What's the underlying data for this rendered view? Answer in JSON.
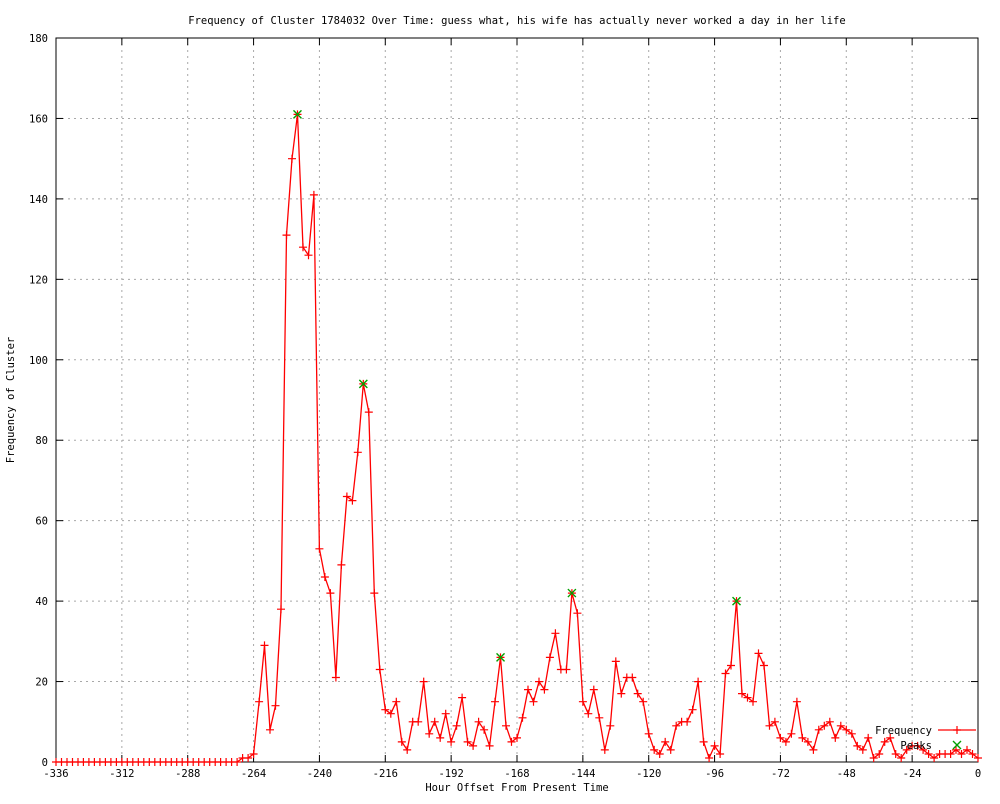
{
  "chart_data": {
    "type": "line",
    "title": "Frequency of Cluster 1784032 Over Time: guess what, his wife has actually never worked a day in her life",
    "xlabel": "Hour Offset From Present Time",
    "ylabel": "Frequency of Cluster",
    "xlim": [
      -336,
      0
    ],
    "ylim": [
      0,
      180
    ],
    "xticks": [
      -336,
      -312,
      -288,
      -264,
      -240,
      -216,
      -192,
      -168,
      -144,
      -120,
      -96,
      -72,
      -48,
      -24,
      0
    ],
    "yticks": [
      0,
      20,
      40,
      60,
      80,
      100,
      120,
      140,
      160,
      180
    ],
    "grid": true,
    "legend_position": "bottom-right",
    "x_start": -336,
    "x_step": 2,
    "series": [
      {
        "name": "Frequency",
        "color": "#ff0000",
        "marker": "plus",
        "values": [
          0,
          0,
          0,
          0,
          0,
          0,
          0,
          0,
          0,
          0,
          0,
          0,
          0,
          0,
          0,
          0,
          0,
          0,
          0,
          0,
          0,
          0,
          0,
          0,
          0,
          0,
          0,
          0,
          0,
          0,
          0,
          0,
          0,
          0,
          1,
          1,
          2,
          15,
          29,
          8,
          14,
          38,
          131,
          150,
          161,
          128,
          126,
          141,
          53,
          46,
          42,
          21,
          49,
          66,
          65,
          77,
          94,
          87,
          42,
          23,
          13,
          12,
          15,
          5,
          3,
          10,
          10,
          20,
          7,
          10,
          6,
          12,
          5,
          9,
          16,
          5,
          4,
          10,
          8,
          4,
          15,
          26,
          9,
          5,
          6,
          11,
          18,
          15,
          20,
          18,
          26,
          32,
          23,
          23,
          42,
          37,
          15,
          12,
          18,
          11,
          3,
          9,
          25,
          17,
          21,
          21,
          17,
          15,
          7,
          3,
          2,
          5,
          3,
          9,
          10,
          10,
          13,
          20,
          5,
          1,
          4,
          2,
          22,
          24,
          40,
          17,
          16,
          15,
          27,
          24,
          9,
          10,
          6,
          5,
          7,
          15,
          6,
          5,
          3,
          8,
          9,
          10,
          6,
          9,
          8,
          7,
          4,
          3,
          6,
          1,
          2,
          5,
          6,
          2,
          1,
          3,
          4,
          4,
          3,
          2,
          1,
          2,
          2,
          2,
          3,
          2,
          3,
          2,
          1
        ]
      }
    ],
    "peaks": {
      "name": "Peaks",
      "color": "#00a000",
      "marker": "cross",
      "points": [
        {
          "x": -248,
          "y": 161
        },
        {
          "x": -224,
          "y": 94
        },
        {
          "x": -174,
          "y": 26
        },
        {
          "x": -148,
          "y": 42
        },
        {
          "x": -88,
          "y": 40
        }
      ]
    },
    "colors": {
      "line": "#ff0000",
      "peak": "#00a000",
      "grid": "#a8a8a8",
      "border": "#000000",
      "background": "#ffffff"
    }
  }
}
